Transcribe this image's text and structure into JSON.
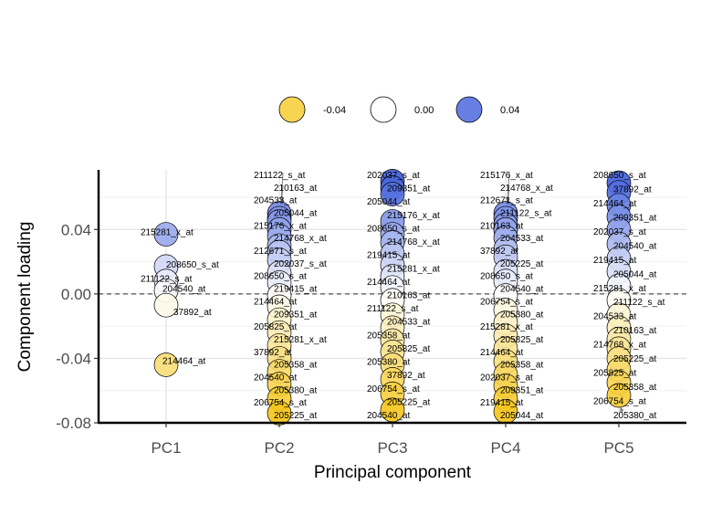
{
  "chart_data": {
    "type": "scatter",
    "xlabel": "Principal component",
    "ylabel": "Component loading",
    "categories": [
      "PC1",
      "PC2",
      "PC3",
      "PC4",
      "PC5"
    ],
    "yticks": [
      -0.08,
      -0.04,
      0.0,
      0.04
    ],
    "ytick_labels": [
      "-0.08",
      "-0.04",
      "0.00",
      "0.04"
    ],
    "ylim": [
      -0.08,
      0.077
    ],
    "reference_line_y": 0,
    "grid": true,
    "legend": {
      "position": "top",
      "entries": [
        {
          "label": "-0.04",
          "value": -0.04
        },
        {
          "label": "0.00",
          "value": 0.0
        },
        {
          "label": "0.04",
          "value": 0.04
        }
      ]
    },
    "colors": {
      "negative": "#f5c518",
      "neutral": "#ffffff",
      "positive": "#3353d9",
      "arrow": "#808080",
      "refline": "#555555"
    },
    "points": [
      {
        "pc": "PC1",
        "probe": "215281_x_at",
        "value": 0.037
      },
      {
        "pc": "PC1",
        "probe": "208650_s_at",
        "value": 0.017
      },
      {
        "pc": "PC1",
        "probe": "211122_s_at",
        "value": 0.008
      },
      {
        "pc": "PC1",
        "probe": "204540_at",
        "value": 0.002
      },
      {
        "pc": "PC1",
        "probe": "37892_at",
        "value": -0.007
      },
      {
        "pc": "PC1",
        "probe": "214464_at",
        "value": -0.044
      },
      {
        "pc": "PC2",
        "probe": "211122_s_at",
        "value": 0.05
      },
      {
        "pc": "PC2",
        "probe": "210163_at",
        "value": 0.047
      },
      {
        "pc": "PC2",
        "probe": "204533_at",
        "value": 0.045
      },
      {
        "pc": "PC2",
        "probe": "205044_at",
        "value": 0.04
      },
      {
        "pc": "PC2",
        "probe": "215176_x_at",
        "value": 0.036
      },
      {
        "pc": "PC2",
        "probe": "214768_x_at",
        "value": 0.03
      },
      {
        "pc": "PC2",
        "probe": "212671_s_at",
        "value": 0.026
      },
      {
        "pc": "PC2",
        "probe": "202037_s_at",
        "value": 0.021
      },
      {
        "pc": "PC2",
        "probe": "208650_s_at",
        "value": 0.013
      },
      {
        "pc": "PC2",
        "probe": "219415_at",
        "value": 0.007
      },
      {
        "pc": "PC2",
        "probe": "214464_at",
        "value": -0.001
      },
      {
        "pc": "PC2",
        "probe": "209351_at",
        "value": -0.008
      },
      {
        "pc": "PC2",
        "probe": "205825_at",
        "value": -0.016
      },
      {
        "pc": "PC2",
        "probe": "215281_x_at",
        "value": -0.024
      },
      {
        "pc": "PC2",
        "probe": "37892_at",
        "value": -0.032
      },
      {
        "pc": "PC2",
        "probe": "205358_at",
        "value": -0.04
      },
      {
        "pc": "PC2",
        "probe": "204540_at",
        "value": -0.048
      },
      {
        "pc": "PC2",
        "probe": "205380_at",
        "value": -0.056
      },
      {
        "pc": "PC2",
        "probe": "206754_s_at",
        "value": -0.065
      },
      {
        "pc": "PC2",
        "probe": "205225_at",
        "value": -0.074
      },
      {
        "pc": "PC3",
        "probe": "202037_s_at",
        "value": 0.07
      },
      {
        "pc": "PC3",
        "probe": "209351_at",
        "value": 0.066
      },
      {
        "pc": "PC3",
        "probe": "205044_at",
        "value": 0.062
      },
      {
        "pc": "PC3",
        "probe": "215176_x_at",
        "value": 0.045
      },
      {
        "pc": "PC3",
        "probe": "208650_s_at",
        "value": 0.037
      },
      {
        "pc": "PC3",
        "probe": "214768_x_at",
        "value": 0.032
      },
      {
        "pc": "PC3",
        "probe": "219415_at",
        "value": 0.025
      },
      {
        "pc": "PC3",
        "probe": "215281_x_at",
        "value": 0.018
      },
      {
        "pc": "PC3",
        "probe": "214464_at",
        "value": 0.011
      },
      {
        "pc": "PC3",
        "probe": "210163_at",
        "value": 0.004
      },
      {
        "pc": "PC3",
        "probe": "211122_s_at",
        "value": -0.004
      },
      {
        "pc": "PC3",
        "probe": "204533_at",
        "value": -0.013
      },
      {
        "pc": "PC3",
        "probe": "205358_at",
        "value": -0.021
      },
      {
        "pc": "PC3",
        "probe": "205825_at",
        "value": -0.029
      },
      {
        "pc": "PC3",
        "probe": "205380_at",
        "value": -0.036
      },
      {
        "pc": "PC3",
        "probe": "37892_at",
        "value": -0.044
      },
      {
        "pc": "PC3",
        "probe": "206754_s_at",
        "value": -0.053
      },
      {
        "pc": "PC3",
        "probe": "205225_at",
        "value": -0.062
      },
      {
        "pc": "PC3",
        "probe": "204540_at",
        "value": -0.072
      },
      {
        "pc": "PC4",
        "probe": "215176_x_at",
        "value": 0.05
      },
      {
        "pc": "PC4",
        "probe": "214768_x_at",
        "value": 0.047
      },
      {
        "pc": "PC4",
        "probe": "212671_s_at",
        "value": 0.043
      },
      {
        "pc": "PC4",
        "probe": "211122_s_at",
        "value": 0.04
      },
      {
        "pc": "PC4",
        "probe": "210163_at",
        "value": 0.04
      },
      {
        "pc": "PC4",
        "probe": "204533_at",
        "value": 0.035
      },
      {
        "pc": "PC4",
        "probe": "37892_at",
        "value": 0.028
      },
      {
        "pc": "PC4",
        "probe": "205225_at",
        "value": 0.023
      },
      {
        "pc": "PC4",
        "probe": "208650_s_at",
        "value": 0.014
      },
      {
        "pc": "PC4",
        "probe": "204540_at",
        "value": 0.008
      },
      {
        "pc": "PC4",
        "probe": "206754_s_at",
        "value": -0.001
      },
      {
        "pc": "PC4",
        "probe": "205380_at",
        "value": -0.01
      },
      {
        "pc": "PC4",
        "probe": "215281_x_at",
        "value": -0.018
      },
      {
        "pc": "PC4",
        "probe": "205825_at",
        "value": -0.026
      },
      {
        "pc": "PC4",
        "probe": "214464_at",
        "value": -0.034
      },
      {
        "pc": "PC4",
        "probe": "205358_at",
        "value": -0.042
      },
      {
        "pc": "PC4",
        "probe": "202037_s_at",
        "value": -0.05
      },
      {
        "pc": "PC4",
        "probe": "209351_at",
        "value": -0.057
      },
      {
        "pc": "PC4",
        "probe": "219415_at",
        "value": -0.065
      },
      {
        "pc": "PC4",
        "probe": "205044_at",
        "value": -0.073
      },
      {
        "pc": "PC5",
        "probe": "208650_s_at",
        "value": 0.069
      },
      {
        "pc": "PC5",
        "probe": "37892_at",
        "value": 0.063
      },
      {
        "pc": "PC5",
        "probe": "214464_at",
        "value": 0.055
      },
      {
        "pc": "PC5",
        "probe": "209351_at",
        "value": 0.048
      },
      {
        "pc": "PC5",
        "probe": "202037_s_at",
        "value": 0.04
      },
      {
        "pc": "PC5",
        "probe": "204540_at",
        "value": 0.031
      },
      {
        "pc": "PC5",
        "probe": "219415_at",
        "value": 0.022
      },
      {
        "pc": "PC5",
        "probe": "205044_at",
        "value": 0.014
      },
      {
        "pc": "PC5",
        "probe": "215281_x_at",
        "value": 0.005
      },
      {
        "pc": "PC5",
        "probe": "211122_s_at",
        "value": -0.004
      },
      {
        "pc": "PC5",
        "probe": "204533_at",
        "value": -0.013
      },
      {
        "pc": "PC5",
        "probe": "210163_at",
        "value": -0.021
      },
      {
        "pc": "PC5",
        "probe": "214768_x_at",
        "value": -0.028
      },
      {
        "pc": "PC5",
        "probe": "205225_at",
        "value": -0.034
      },
      {
        "pc": "PC5",
        "probe": "205825_at",
        "value": -0.04
      },
      {
        "pc": "PC5",
        "probe": "205358_at",
        "value": -0.047
      },
      {
        "pc": "PC5",
        "probe": "206754_s_at",
        "value": -0.055
      },
      {
        "pc": "PC5",
        "probe": "205380_at",
        "value": -0.063
      }
    ]
  }
}
